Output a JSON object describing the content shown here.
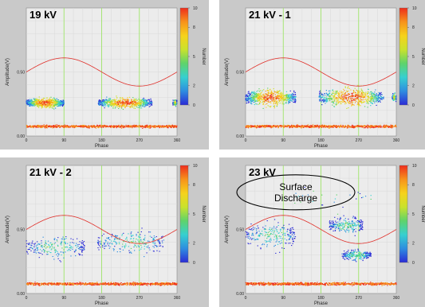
{
  "chart_data": [
    {
      "type": "scatter",
      "title": "19 kV",
      "xlabel": "Phase",
      "ylabel": "Amplitude(V)",
      "xlim": [
        0,
        360
      ],
      "ylim": [
        0,
        1.0
      ],
      "x_ticks": [
        "0",
        "90",
        "180",
        "270",
        "360"
      ],
      "y_ticks": [
        "0.00",
        "0.50"
      ],
      "colorbar": {
        "label": "Number",
        "range": [
          0,
          10
        ],
        "ticks": [
          "0",
          "2",
          "5",
          "8",
          "10"
        ]
      },
      "reference_wave": {
        "amplitude": 0.11,
        "offset": 0.5,
        "phase_deg": 0
      },
      "clusters": [
        {
          "x_range": [
            0,
            90
          ],
          "y_center": 0.26,
          "y_spread": 0.045,
          "density": "high"
        },
        {
          "x_range": [
            172,
            300
          ],
          "y_center": 0.26,
          "y_spread": 0.05,
          "density": "high"
        },
        {
          "x_range": [
            350,
            360
          ],
          "y_center": 0.26,
          "y_spread": 0.03,
          "density": "medium"
        },
        {
          "x_range": [
            0,
            360
          ],
          "y_center": 0.075,
          "y_spread": 0.012,
          "density": "very-high"
        }
      ],
      "annotations": []
    },
    {
      "type": "scatter",
      "title": "21 kV - 1",
      "xlabel": "Phase",
      "ylabel": "Amplitude(V)",
      "xlim": [
        0,
        360
      ],
      "ylim": [
        0,
        1.0
      ],
      "x_ticks": [
        "0",
        "90",
        "180",
        "270",
        "360"
      ],
      "y_ticks": [
        "0.00",
        "0.50"
      ],
      "colorbar": {
        "label": "Number",
        "range": [
          0,
          10
        ],
        "ticks": [
          "0",
          "2",
          "5",
          "8",
          "10"
        ]
      },
      "reference_wave": {
        "amplitude": 0.11,
        "offset": 0.5,
        "phase_deg": 0
      },
      "clusters": [
        {
          "x_range": [
            0,
            120
          ],
          "y_center": 0.3,
          "y_spread": 0.075,
          "density": "high"
        },
        {
          "x_range": [
            175,
            330
          ],
          "y_center": 0.3,
          "y_spread": 0.085,
          "density": "high"
        },
        {
          "x_range": [
            350,
            360
          ],
          "y_center": 0.3,
          "y_spread": 0.04,
          "density": "medium"
        },
        {
          "x_range": [
            0,
            360
          ],
          "y_center": 0.075,
          "y_spread": 0.012,
          "density": "very-high"
        }
      ],
      "annotations": []
    },
    {
      "type": "scatter",
      "title": "21 kV - 2",
      "xlabel": "Phase",
      "ylabel": "Amplitude(V)",
      "xlim": [
        0,
        360
      ],
      "ylim": [
        0,
        1.0
      ],
      "x_ticks": [
        "0",
        "90",
        "180",
        "270",
        "360"
      ],
      "y_ticks": [
        "0.00",
        "0.50"
      ],
      "colorbar": {
        "label": "Number",
        "range": [
          0,
          10
        ],
        "ticks": [
          "0",
          "2",
          "5",
          "8",
          "10"
        ]
      },
      "reference_wave": {
        "amplitude": 0.11,
        "offset": 0.5,
        "phase_deg": 0
      },
      "clusters": [
        {
          "x_range": [
            0,
            140
          ],
          "y_center": 0.36,
          "y_spread": 0.11,
          "density": "low"
        },
        {
          "x_range": [
            170,
            330
          ],
          "y_center": 0.4,
          "y_spread": 0.11,
          "density": "low"
        },
        {
          "x_range": [
            0,
            360
          ],
          "y_center": 0.075,
          "y_spread": 0.012,
          "density": "very-high"
        }
      ],
      "annotations": []
    },
    {
      "type": "scatter",
      "title": "23 kV",
      "xlabel": "Phase",
      "ylabel": "Amplitude(V)",
      "xlim": [
        0,
        360
      ],
      "ylim": [
        0,
        1.0
      ],
      "x_ticks": [
        "0",
        "90",
        "180",
        "270",
        "360"
      ],
      "y_ticks": [
        "0.00",
        "0.50"
      ],
      "colorbar": {
        "label": "Number",
        "range": [
          0,
          10
        ],
        "ticks": [
          "0",
          "2",
          "5",
          "8",
          "10"
        ]
      },
      "reference_wave": {
        "amplitude": 0.11,
        "offset": 0.5,
        "phase_deg": 0
      },
      "clusters": [
        {
          "x_range": [
            0,
            120
          ],
          "y_center": 0.45,
          "y_spread": 0.13,
          "density": "low"
        },
        {
          "x_range": [
            200,
            280
          ],
          "y_center": 0.53,
          "y_spread": 0.08,
          "density": "low"
        },
        {
          "x_range": [
            230,
            300
          ],
          "y_center": 0.3,
          "y_spread": 0.05,
          "density": "low"
        },
        {
          "x_range": [
            90,
            300
          ],
          "y_center": 0.75,
          "y_spread": 0.12,
          "density": "very-low"
        },
        {
          "x_range": [
            0,
            360
          ],
          "y_center": 0.075,
          "y_spread": 0.012,
          "density": "very-high"
        }
      ],
      "annotations": [
        {
          "text_line1": "Surface",
          "text_line2": "Discharge"
        }
      ]
    }
  ],
  "colors": {
    "panel_bg": "#c9c9c9",
    "plot_bg": "#ececec",
    "grid_major": "#9fe56a",
    "grid_minor": "#d6d6d6",
    "wave": "#e0302a",
    "colorbar": [
      "#2b2bd6",
      "#2e8de0",
      "#36d0d0",
      "#5fd36a",
      "#c9e22d",
      "#f6d21b",
      "#f7921b",
      "#ee2d1d"
    ]
  }
}
